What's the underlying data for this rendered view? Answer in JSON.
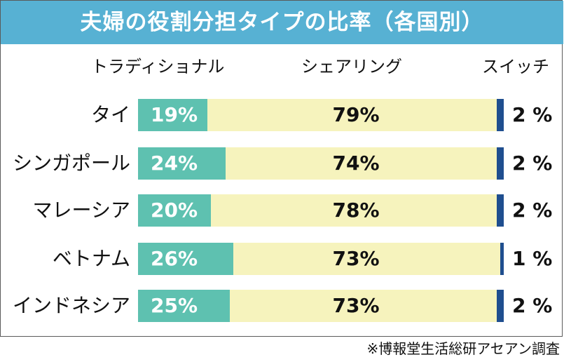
{
  "source": "※博報堂生活総研アセアン調査",
  "colors": {
    "title_bg": "#57b1d3",
    "traditional": "#5ec1b0",
    "sharing": "#f6f3bd",
    "switch": "#1f4e8f"
  },
  "chart_data": {
    "type": "bar",
    "stacked": true,
    "orientation": "horizontal",
    "title": "夫婦の役割分担タイプの比率（各国別）",
    "categories": [
      "タイ",
      "シンガポール",
      "マレーシア",
      "ベトナム",
      "インドネシア"
    ],
    "series": [
      {
        "name": "トラディショナル",
        "values": [
          19,
          24,
          20,
          26,
          25
        ]
      },
      {
        "name": "シェアリング",
        "values": [
          79,
          74,
          78,
          73,
          73
        ]
      },
      {
        "name": "スイッチ",
        "values": [
          2,
          2,
          2,
          1,
          2
        ]
      }
    ],
    "data_labels": [
      [
        "19%",
        "24%",
        "20%",
        "26%",
        "25%"
      ],
      [
        "79%",
        "74%",
        "78%",
        "73%",
        "73%"
      ],
      [
        "2 %",
        "2 %",
        "2 %",
        "1 %",
        "2 %"
      ]
    ],
    "xlim": [
      0,
      100
    ]
  }
}
